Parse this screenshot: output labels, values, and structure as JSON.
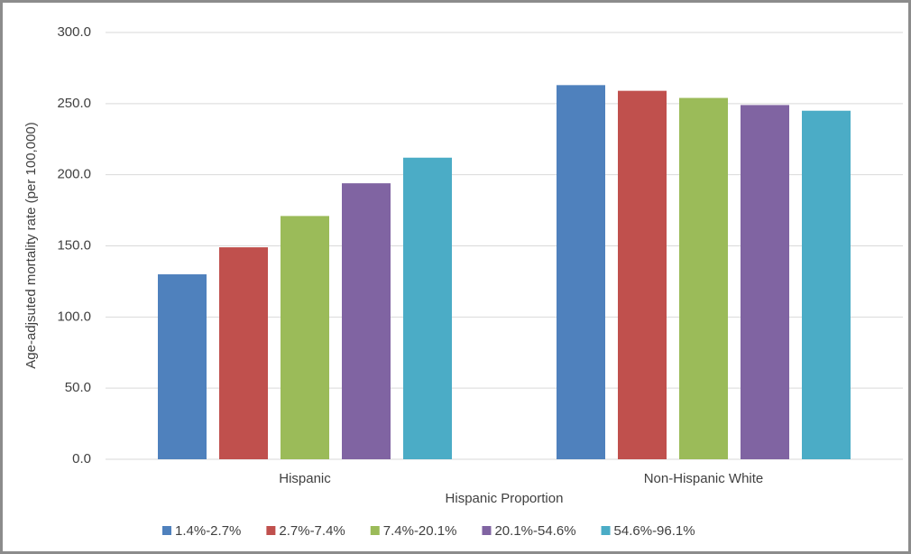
{
  "chart_data": {
    "type": "bar",
    "y_label": "Age-adjsuted mortality rate (per 100,000)",
    "x_label": "Hispanic Proportion",
    "categories": [
      "Hispanic",
      "Non-Hispanic White"
    ],
    "series": [
      {
        "name": "1.4%-2.7%",
        "color": "#4f81bd",
        "values": [
          130,
          263
        ]
      },
      {
        "name": "2.7%-7.4%",
        "color": "#c0504d",
        "values": [
          149,
          259
        ]
      },
      {
        "name": "7.4%-20.1%",
        "color": "#9bbb59",
        "values": [
          171,
          254
        ]
      },
      {
        "name": "20.1%-54.6%",
        "color": "#8064a2",
        "values": [
          194,
          249
        ]
      },
      {
        "name": "54.6%-96.1%",
        "color": "#4bacc6",
        "values": [
          212,
          245
        ]
      }
    ],
    "ylim": [
      0,
      300
    ],
    "yticks": [
      {
        "value": 0,
        "label": "0.0"
      },
      {
        "value": 50,
        "label": "50.0"
      },
      {
        "value": 100,
        "label": "100.0"
      },
      {
        "value": 150,
        "label": "150.0"
      },
      {
        "value": 200,
        "label": "200.0"
      },
      {
        "value": 250,
        "label": "250.0"
      },
      {
        "value": 300,
        "label": "300.0"
      }
    ],
    "grid": true,
    "legend": "bottom"
  }
}
